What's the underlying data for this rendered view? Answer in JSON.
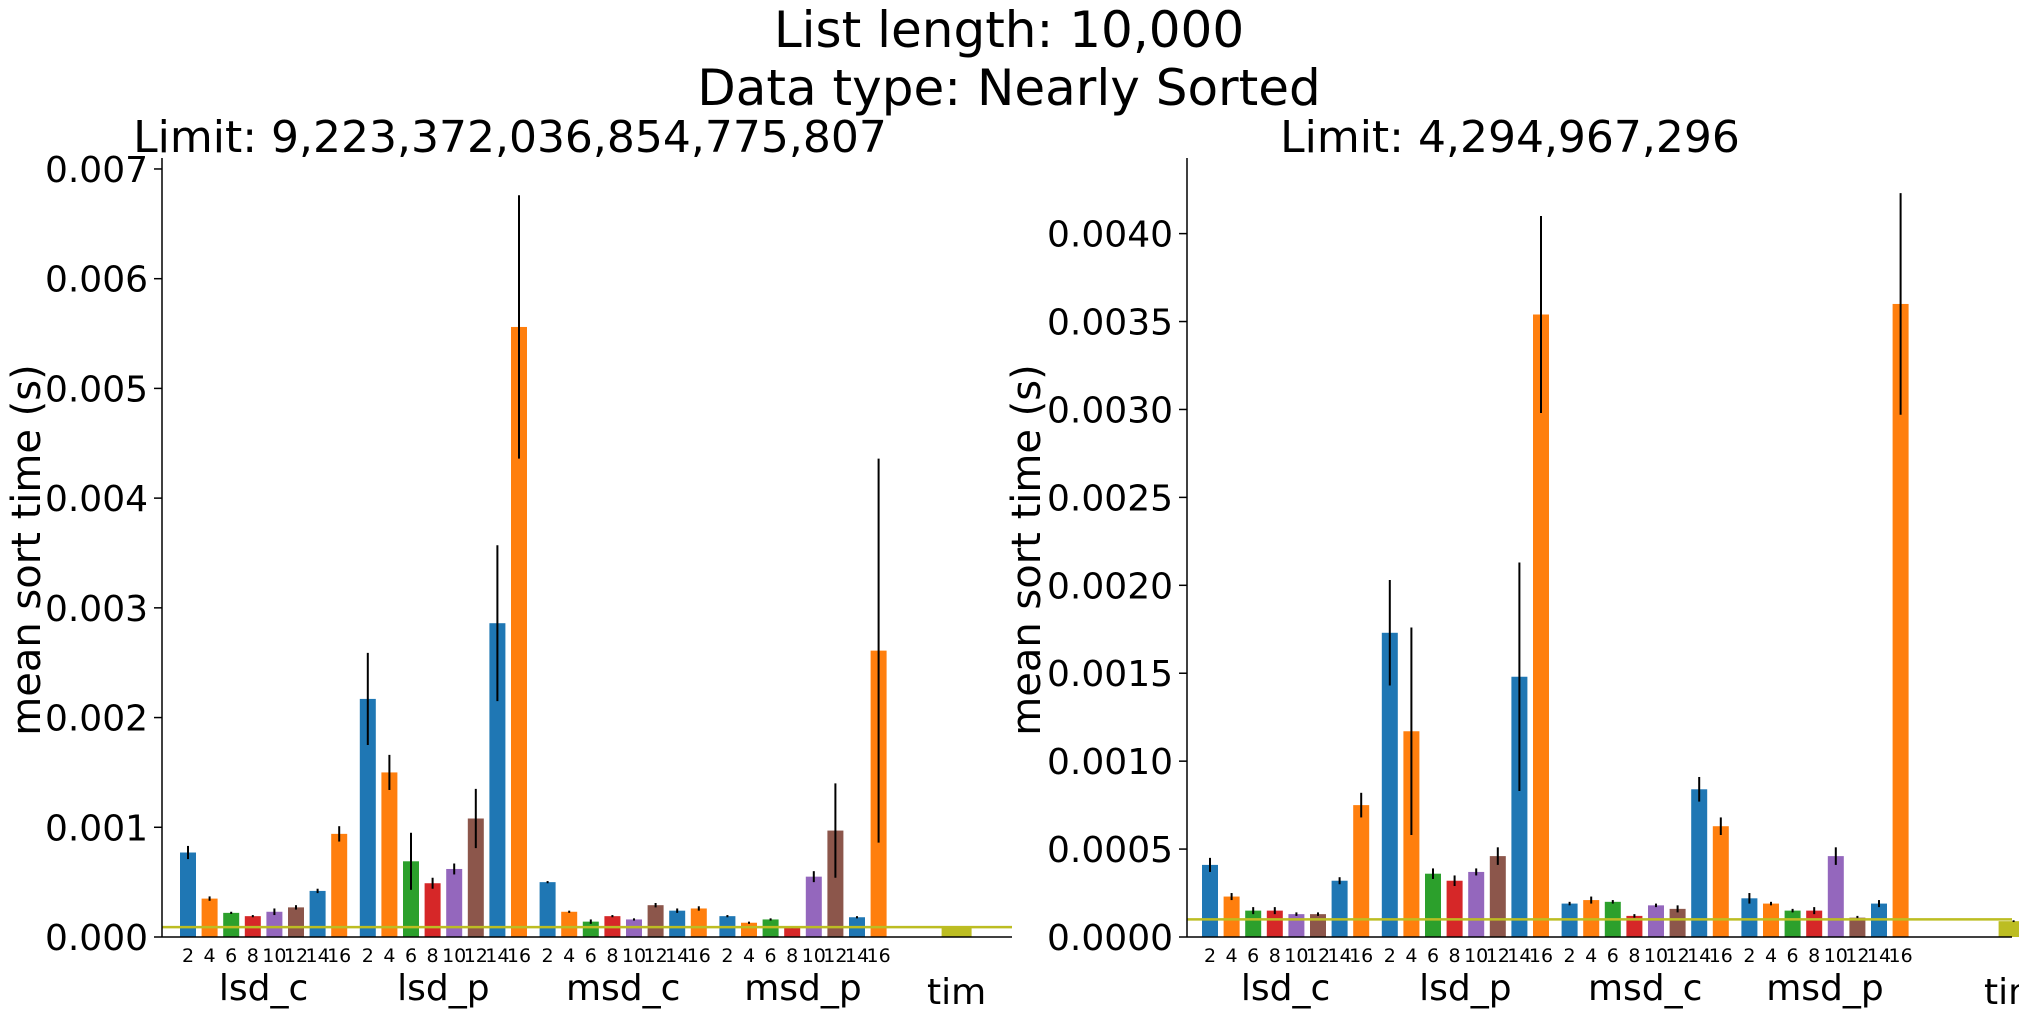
{
  "figure": {
    "title_line1": "List length: 10,000",
    "title_line2": "Data type: Nearly Sorted"
  },
  "chart_data": [
    {
      "type": "bar",
      "title": "Limit: 9,223,372,036,854,775,807",
      "ylabel": "mean sort time (s)",
      "ylim": [
        0,
        0.0071
      ],
      "yticks": [
        0,
        0.001,
        0.002,
        0.003,
        0.004,
        0.005,
        0.006,
        0.007
      ],
      "ytick_labels": [
        "0.000",
        "0.001",
        "0.002",
        "0.003",
        "0.004",
        "0.005",
        "0.006",
        "0.007"
      ],
      "reference_line": 9e-05,
      "groups": [
        {
          "label": "lsd_c",
          "categories": [
            "2",
            "4",
            "6",
            "8",
            "10",
            "12",
            "14",
            "16"
          ],
          "values": [
            0.00077,
            0.00035,
            0.00022,
            0.00019,
            0.00023,
            0.00027,
            0.00042,
            0.00094
          ],
          "errors": [
            6e-05,
            2e-05,
            1e-05,
            1e-05,
            3e-05,
            2e-05,
            2e-05,
            7e-05
          ]
        },
        {
          "label": "lsd_p",
          "categories": [
            "2",
            "4",
            "6",
            "8",
            "10",
            "12",
            "14",
            "16"
          ],
          "values": [
            0.00217,
            0.0015,
            0.00069,
            0.00049,
            0.00062,
            0.00108,
            0.00286,
            0.00556
          ],
          "errors": [
            0.00042,
            0.00016,
            0.00026,
            5e-05,
            5e-05,
            0.00027,
            0.00071,
            0.0012
          ]
        },
        {
          "label": "msd_c",
          "categories": [
            "2",
            "4",
            "6",
            "8",
            "10",
            "12",
            "14",
            "16"
          ],
          "values": [
            0.0005,
            0.00023,
            0.00014,
            0.00019,
            0.00016,
            0.00029,
            0.00024,
            0.00026
          ],
          "errors": [
            1e-05,
            1e-05,
            2e-05,
            1e-05,
            1e-05,
            2e-05,
            2e-05,
            2e-05
          ]
        },
        {
          "label": "msd_p",
          "categories": [
            "2",
            "4",
            "6",
            "8",
            "10",
            "12",
            "14",
            "16"
          ],
          "values": [
            0.00019,
            0.00013,
            0.00016,
            9e-05,
            0.00055,
            0.00097,
            0.00018,
            0.00261
          ],
          "errors": [
            1e-05,
            1e-05,
            1e-05,
            1e-05,
            5e-05,
            0.00043,
            1e-05,
            0.00175
          ]
        },
        {
          "label": "tim",
          "categories": [
            ""
          ],
          "values": [
            9e-05
          ],
          "errors": [
            5e-06
          ]
        }
      ]
    },
    {
      "type": "bar",
      "title": "Limit: 4,294,967,296",
      "ylabel": "mean sort time (s)",
      "ylim": [
        0,
        0.00443
      ],
      "yticks": [
        0,
        0.0005,
        0.001,
        0.0015,
        0.002,
        0.0025,
        0.003,
        0.0035,
        0.004
      ],
      "ytick_labels": [
        "0.0000",
        "0.0005",
        "0.0010",
        "0.0015",
        "0.0020",
        "0.0025",
        "0.0030",
        "0.0035",
        "0.0040"
      ],
      "reference_line": 0.0001,
      "groups": [
        {
          "label": "lsd_c",
          "categories": [
            "2",
            "4",
            "6",
            "8",
            "10",
            "12",
            "14",
            "16"
          ],
          "values": [
            0.00041,
            0.00023,
            0.00015,
            0.00015,
            0.00013,
            0.00013,
            0.00032,
            0.00075
          ],
          "errors": [
            4e-05,
            2e-05,
            2e-05,
            2e-05,
            1e-05,
            1e-05,
            2e-05,
            7e-05
          ]
        },
        {
          "label": "lsd_p",
          "categories": [
            "2",
            "4",
            "6",
            "8",
            "10",
            "12",
            "14",
            "16"
          ],
          "values": [
            0.00173,
            0.00117,
            0.00036,
            0.00032,
            0.00037,
            0.00046,
            0.00148,
            0.00354
          ],
          "errors": [
            0.0003,
            0.00059,
            3e-05,
            3e-05,
            2e-05,
            5e-05,
            0.00065,
            0.00056
          ]
        },
        {
          "label": "msd_c",
          "categories": [
            "2",
            "4",
            "6",
            "8",
            "10",
            "12",
            "14",
            "16"
          ],
          "values": [
            0.00019,
            0.00021,
            0.0002,
            0.00012,
            0.00018,
            0.00016,
            0.00084,
            0.00063
          ],
          "errors": [
            1e-05,
            2e-05,
            1e-05,
            1e-05,
            1e-05,
            2e-05,
            7e-05,
            5e-05
          ]
        },
        {
          "label": "msd_p",
          "categories": [
            "2",
            "4",
            "6",
            "8",
            "10",
            "12",
            "14",
            "16"
          ],
          "values": [
            0.00022,
            0.00019,
            0.00015,
            0.00015,
            0.00046,
            0.00011,
            0.00019,
            0.0036
          ],
          "errors": [
            3e-05,
            1e-05,
            1e-05,
            2e-05,
            5e-05,
            1e-05,
            2e-05,
            0.00063
          ]
        },
        {
          "label": "tim",
          "categories": [
            ""
          ],
          "values": [
            9e-05
          ],
          "errors": [
            5e-06
          ]
        }
      ]
    }
  ],
  "colors": {
    "series": [
      "#1f77b4",
      "#ff7f0e",
      "#2ca02c",
      "#d62728",
      "#9467bd",
      "#8c564b",
      "#1f77b4",
      "#ff7f0e"
    ],
    "tim": "#bcbd22",
    "reference_line": "#bcbd22",
    "error_bar": "#000000",
    "axis": "#000000"
  }
}
